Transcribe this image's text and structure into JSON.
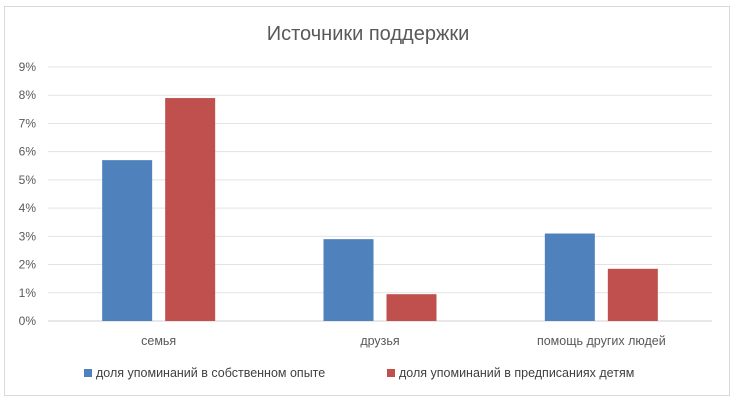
{
  "chart_data": {
    "type": "bar",
    "title": "Источники поддержки",
    "categories": [
      "семья",
      "друзья",
      "помощь других людей"
    ],
    "series": [
      {
        "name": "доля упоминаний в собственном опыте",
        "color": "#4f81bd",
        "values": [
          5.7,
          2.9,
          3.1
        ]
      },
      {
        "name": "доля упоминаний в предписаниях детям",
        "color": "#c0504d",
        "values": [
          7.9,
          0.95,
          1.85
        ]
      }
    ],
    "y_ticks": [
      "0%",
      "1%",
      "2%",
      "3%",
      "4%",
      "5%",
      "6%",
      "7%",
      "8%",
      "9%"
    ],
    "ylim": [
      0,
      9
    ],
    "grid": true,
    "legend_position": "bottom"
  }
}
